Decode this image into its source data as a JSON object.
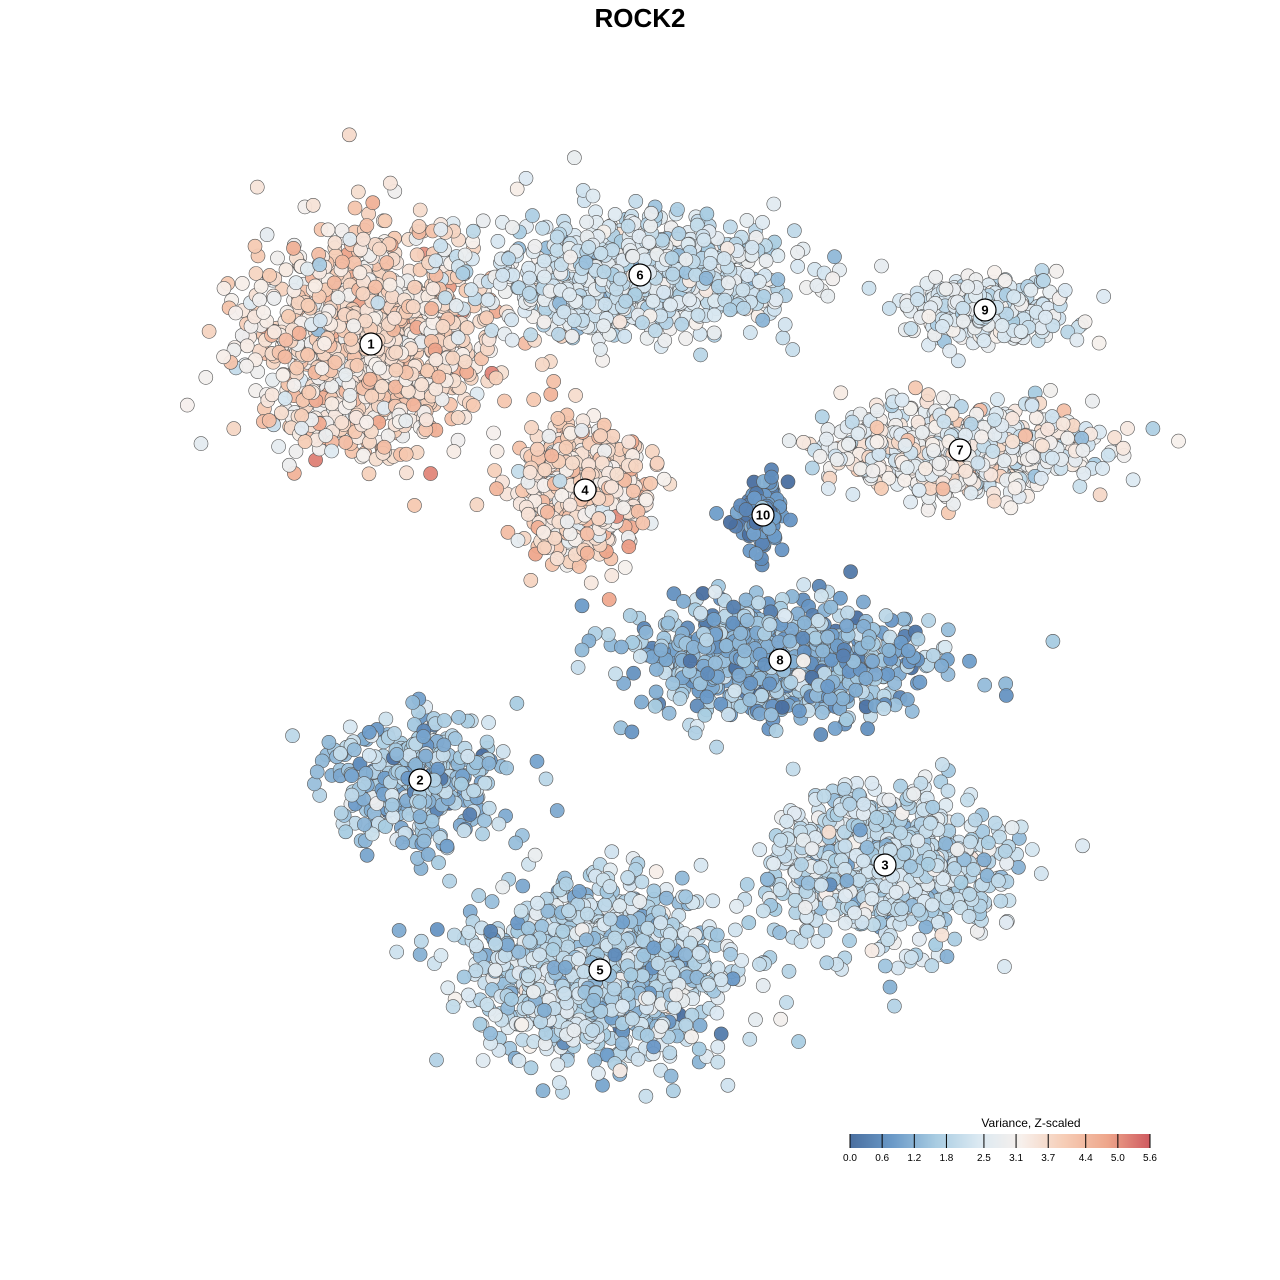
{
  "chart_data": {
    "type": "scatter",
    "title": "ROCK2",
    "xlabel": "",
    "ylabel": "",
    "axes_visible": false,
    "grid": false,
    "legend": {
      "title": "Variance, Z-scaled",
      "placement": "bottom-right",
      "ticks": [
        "0.0",
        "0.6",
        "1.2",
        "1.8",
        "2.5",
        "3.1",
        "3.7",
        "4.4",
        "5.0",
        "5.6"
      ],
      "range": [
        0.0,
        5.6
      ],
      "colors": [
        "#4a6fa0",
        "#6b9ac8",
        "#a8cce2",
        "#dbe9f2",
        "#f7f0ec",
        "#f6cdb6",
        "#eea68b",
        "#cf5a60"
      ]
    },
    "clusters": [
      {
        "label": "1",
        "center": [
          371,
          344
        ],
        "spread": [
          105,
          95
        ],
        "level": 3.6,
        "level_sd": 0.55,
        "n": 1200
      },
      {
        "label": "2",
        "center": [
          420,
          780
        ],
        "spread": [
          75,
          55
        ],
        "level": 1.5,
        "level_sd": 0.6,
        "n": 380
      },
      {
        "label": "3",
        "center": [
          885,
          865
        ],
        "spread": [
          95,
          65
        ],
        "level": 2.1,
        "level_sd": 0.5,
        "n": 900
      },
      {
        "label": "4",
        "center": [
          585,
          490
        ],
        "spread": [
          55,
          55
        ],
        "level": 3.6,
        "level_sd": 0.55,
        "n": 650
      },
      {
        "label": "5",
        "center": [
          600,
          970
        ],
        "spread": [
          110,
          75
        ],
        "level": 1.9,
        "level_sd": 0.55,
        "n": 1300
      },
      {
        "label": "6",
        "center": [
          640,
          275
        ],
        "spread": [
          130,
          50
        ],
        "level": 2.3,
        "level_sd": 0.45,
        "n": 900
      },
      {
        "label": "7",
        "center": [
          960,
          450
        ],
        "spread": [
          120,
          40
        ],
        "level": 2.9,
        "level_sd": 0.6,
        "n": 650
      },
      {
        "label": "8",
        "center": [
          780,
          660
        ],
        "spread": [
          130,
          50
        ],
        "level": 1.3,
        "level_sd": 0.6,
        "n": 800
      },
      {
        "label": "9",
        "center": [
          985,
          310
        ],
        "spread": [
          75,
          30
        ],
        "level": 2.5,
        "level_sd": 0.35,
        "n": 300
      },
      {
        "label": "10",
        "center": [
          763,
          515
        ],
        "spread": [
          22,
          30
        ],
        "level": 0.6,
        "level_sd": 0.35,
        "n": 120
      }
    ]
  }
}
